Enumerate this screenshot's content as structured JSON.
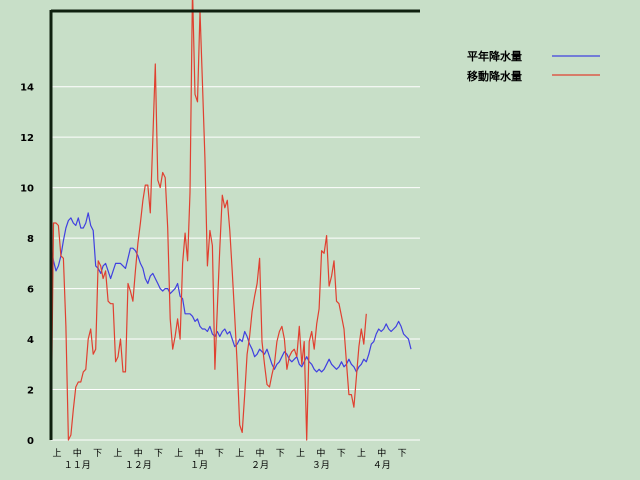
{
  "chart_data": {
    "type": "line",
    "title": "",
    "xlabel": "",
    "ylabel": "",
    "ylim": [
      0,
      17
    ],
    "yticks": [
      0,
      2,
      4,
      6,
      8,
      10,
      12,
      14
    ],
    "grid": true,
    "legend_position": "top-right",
    "period_labels": [
      "上",
      "中",
      "下"
    ],
    "month_labels": [
      "１１月",
      "１２月",
      "１月",
      "２月",
      "３月",
      "４月"
    ],
    "months_with_full_periods": 6,
    "series": [
      {
        "name": "平年降水量",
        "color": "#4040e0",
        "values": [
          7.7,
          7.1,
          6.7,
          6.9,
          7.3,
          7.9,
          8.4,
          8.7,
          8.8,
          8.6,
          8.5,
          8.8,
          8.4,
          8.4,
          8.6,
          9.0,
          8.5,
          8.3,
          6.9,
          6.8,
          6.6,
          6.9,
          7.0,
          6.7,
          6.4,
          6.7,
          7.0,
          7.0,
          7.0,
          6.9,
          6.8,
          7.2,
          7.6,
          7.6,
          7.5,
          7.3,
          7.0,
          6.8,
          6.4,
          6.2,
          6.5,
          6.6,
          6.4,
          6.2,
          6.0,
          5.9,
          6.0,
          6.0,
          5.8,
          5.9,
          6.0,
          6.2,
          5.7,
          5.6,
          5.0,
          5.0,
          5.0,
          4.9,
          4.7,
          4.8,
          4.5,
          4.4,
          4.4,
          4.3,
          4.5,
          4.2,
          4.1,
          4.3,
          4.1,
          4.3,
          4.4,
          4.2,
          4.3,
          4.0,
          3.7,
          3.8,
          4.0,
          3.9,
          4.3,
          4.1,
          3.8,
          3.6,
          3.3,
          3.4,
          3.6,
          3.5,
          3.4,
          3.6,
          3.3,
          3.0,
          2.8,
          3.0,
          3.1,
          3.3,
          3.5,
          3.4,
          3.2,
          3.1,
          3.2,
          3.3,
          3.0,
          2.9,
          3.1,
          3.3,
          3.1,
          3.0,
          2.8,
          2.7,
          2.8,
          2.7,
          2.8,
          3.0,
          3.2,
          3.0,
          2.9,
          2.8,
          2.9,
          3.1,
          2.9,
          3.0,
          3.2,
          3.0,
          2.9,
          2.7,
          2.9,
          3.0,
          3.2,
          3.1,
          3.4,
          3.8,
          3.9,
          4.2,
          4.4,
          4.3,
          4.4,
          4.6,
          4.4,
          4.3,
          4.4,
          4.5,
          4.7,
          4.5,
          4.2,
          4.1,
          4.0,
          3.6
        ]
      },
      {
        "name": "移動降水量",
        "color": "#e04030",
        "values": [
          0.0,
          8.6,
          8.6,
          8.5,
          7.3,
          7.2,
          4.5,
          0.0,
          0.2,
          1.2,
          2.1,
          2.3,
          2.3,
          2.7,
          2.8,
          4.0,
          4.4,
          3.4,
          3.6,
          7.1,
          6.9,
          6.4,
          6.7,
          5.5,
          5.4,
          5.4,
          3.1,
          3.3,
          4.0,
          2.7,
          2.7,
          6.2,
          5.9,
          5.5,
          6.7,
          7.8,
          8.6,
          9.5,
          10.1,
          10.1,
          9.0,
          11.9,
          14.9,
          10.3,
          10.0,
          10.6,
          10.4,
          8.4,
          4.8,
          3.6,
          4.1,
          4.8,
          4.0,
          7.0,
          8.2,
          7.1,
          9.8,
          17.9,
          13.7,
          13.4,
          17.0,
          14.2,
          11.2,
          6.9,
          8.3,
          7.7,
          2.8,
          5.2,
          7.6,
          9.7,
          9.2,
          9.5,
          8.3,
          6.7,
          4.9,
          3.0,
          0.6,
          0.3,
          1.8,
          3.4,
          4.1,
          5.1,
          5.7,
          6.2,
          7.2,
          3.9,
          3.0,
          2.2,
          2.1,
          2.6,
          3.0,
          3.9,
          4.3,
          4.5,
          4.0,
          2.8,
          3.3,
          3.5,
          3.6,
          3.3,
          4.5,
          3.0,
          3.9,
          0.0,
          3.9,
          4.3,
          3.6,
          4.6,
          5.2,
          7.5,
          7.4,
          8.1,
          6.1,
          6.5,
          7.1,
          5.5,
          5.4,
          4.9,
          4.4,
          3.1,
          1.8,
          1.8,
          1.3,
          2.5,
          3.7,
          4.4,
          3.8,
          5.0
        ]
      }
    ]
  }
}
